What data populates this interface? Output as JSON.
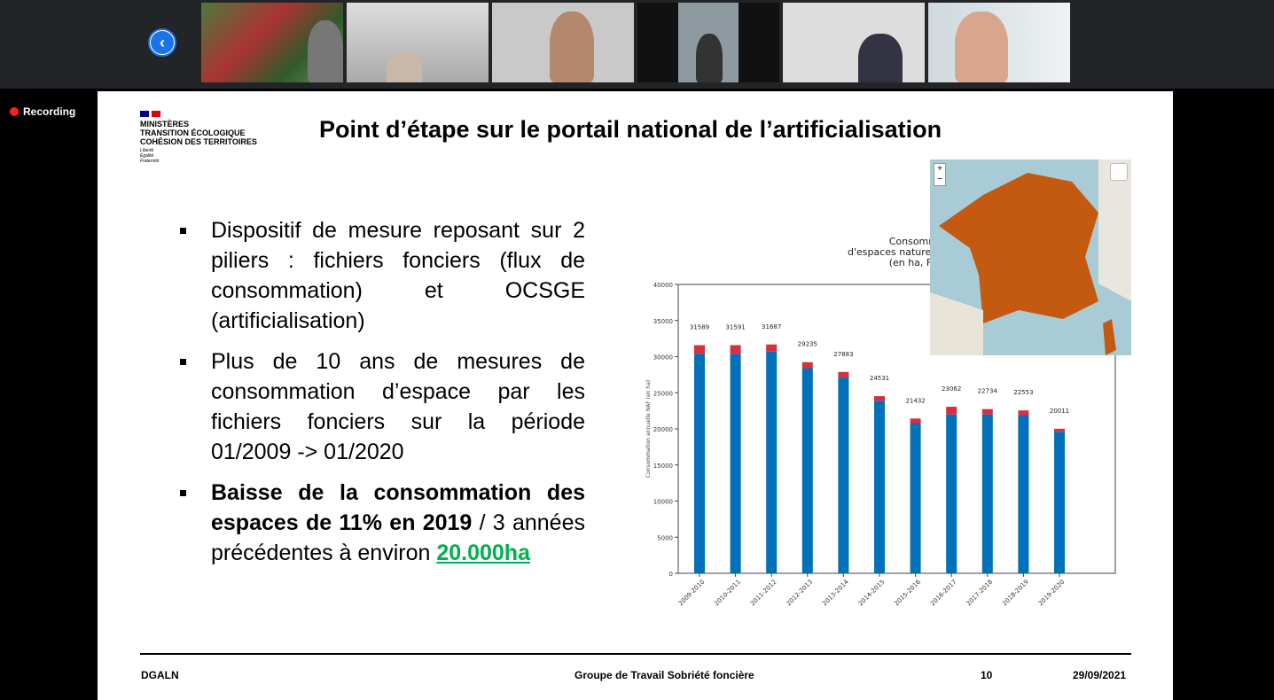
{
  "meeting": {
    "recording_label": "Recording",
    "participants": 6
  },
  "slide": {
    "logo": {
      "line1": "MINISTÈRES",
      "line2": "TRANSITION ÉCOLOGIQUE",
      "line3": "COHÉSION DES TERRITOIRES",
      "motto": [
        "Liberté",
        "Égalité",
        "Fraternité"
      ]
    },
    "title": "Point d’étape sur le portail national de l’artificialisation",
    "bullets": [
      {
        "text": "Dispositif de mesure reposant sur 2 piliers : fichiers fonciers (flux de consommation) et OCSGE (artificialisation)"
      },
      {
        "text": "Plus de 10 ans de mesures de consommation d’espace par les fichiers fonciers sur la période 01/2009 -> 01/2020"
      },
      {
        "bold": "Baisse de la consommation des espaces de 11% en 2019",
        "rest": " / 3 années précédentes à environ ",
        "highlight": "20.000ha"
      }
    ],
    "footer": {
      "left": "DGALN",
      "center": "Groupe de Travail Sobriété foncière",
      "page": "10",
      "date": "29/09/2021"
    }
  },
  "map": {
    "zoom_in": "+",
    "zoom_out": "−"
  },
  "chart_data": {
    "type": "bar",
    "title": [
      "Consommation ann",
      "d'espaces naturels, agricole",
      "(en ha, France dont"
    ],
    "ylabel": "Consommation annuelle NAF (en ha)",
    "ylim": [
      0,
      40000
    ],
    "yticks": [
      0,
      5000,
      10000,
      15000,
      20000,
      25000,
      30000,
      35000,
      40000
    ],
    "categories": [
      "2009-2010",
      "2010-2011",
      "2011-2012",
      "2012-2013",
      "2013-2014",
      "2014-2015",
      "2015-2016",
      "2016-2017",
      "2017-2018",
      "2018-2019",
      "2019-2020"
    ],
    "totals": [
      31589,
      31591,
      31687,
      29235,
      27883,
      24531,
      21432,
      23062,
      22734,
      22553,
      20011
    ],
    "series": [
      {
        "name": "blue",
        "color": "#0070b8",
        "values": [
          30400,
          30400,
          30700,
          28400,
          27100,
          23900,
          20800,
          22000,
          22000,
          21900,
          19600
        ]
      },
      {
        "name": "red",
        "color": "#d62f3f",
        "values": [
          1189,
          1191,
          987,
          835,
          783,
          631,
          632,
          1062,
          734,
          653,
          411
        ]
      }
    ]
  }
}
